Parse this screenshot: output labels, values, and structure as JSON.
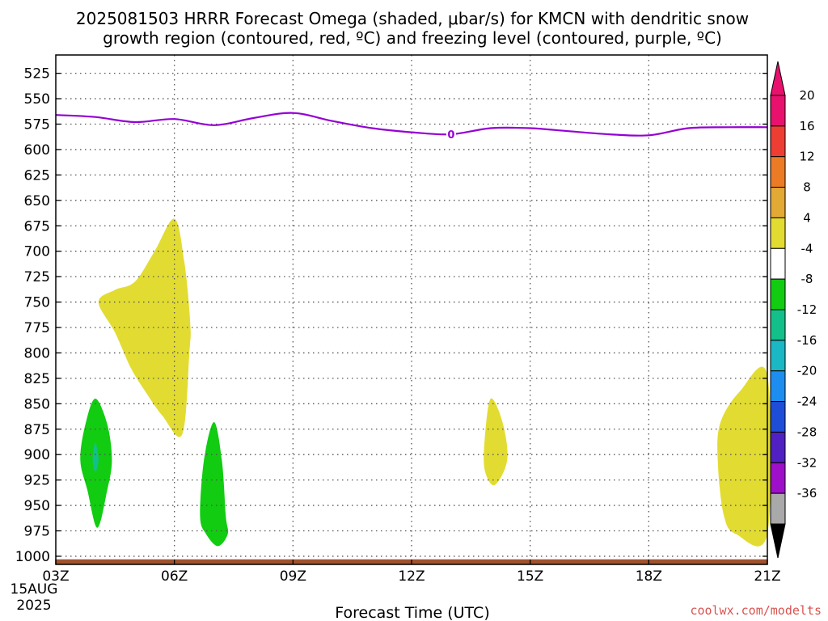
{
  "chart_data": {
    "type": "contour-cross-section",
    "title_line1": "2025081503 HRRR Forecast Omega (shaded, μbar/s) for KMCN with dendritic snow",
    "title_line2": "growth region (contoured, red, ºC) and freezing level (contoured, purple, ºC)",
    "xlabel": "Forecast Time (UTC)",
    "x_ticks": [
      {
        "hour": 3,
        "label": "03Z"
      },
      {
        "hour": 6,
        "label": "06Z"
      },
      {
        "hour": 9,
        "label": "09Z"
      },
      {
        "hour": 12,
        "label": "12Z"
      },
      {
        "hour": 15,
        "label": "15Z"
      },
      {
        "hour": 18,
        "label": "18Z"
      },
      {
        "hour": 21,
        "label": "21Z"
      }
    ],
    "x_date_line1": "15AUG",
    "x_date_line2": "2025",
    "xlim": [
      3,
      21
    ],
    "ylabel": "",
    "ylim": [
      1008,
      507
    ],
    "y_ticks": [
      525,
      550,
      575,
      600,
      625,
      650,
      675,
      700,
      725,
      750,
      775,
      800,
      825,
      850,
      875,
      900,
      925,
      950,
      975,
      1000
    ],
    "grid": true,
    "colorbar": {
      "labels": [
        "20",
        "16",
        "12",
        "8",
        "4",
        "-4",
        "-8",
        "-12",
        "-16",
        "-20",
        "-24",
        "-28",
        "-32",
        "-36"
      ],
      "bands": [
        {
          "from": 20,
          "to": 24,
          "color": "#e8116d"
        },
        {
          "from": 16,
          "to": 20,
          "color": "#ee3d33"
        },
        {
          "from": 12,
          "to": 16,
          "color": "#ec7b26"
        },
        {
          "from": 8,
          "to": 12,
          "color": "#e3a935"
        },
        {
          "from": 4,
          "to": 8,
          "color": "#e2dc32"
        },
        {
          "from": -4,
          "to": 4,
          "color": "#ffffff"
        },
        {
          "from": -8,
          "to": -4,
          "color": "#11cc11"
        },
        {
          "from": -12,
          "to": -8,
          "color": "#13c08a"
        },
        {
          "from": -16,
          "to": -12,
          "color": "#1ab8c4"
        },
        {
          "from": -20,
          "to": -16,
          "color": "#1d8ef0"
        },
        {
          "from": -24,
          "to": -20,
          "color": "#1e4ed8"
        },
        {
          "from": -28,
          "to": -24,
          "color": "#5120c2"
        },
        {
          "from": -32,
          "to": -28,
          "color": "#9d0fc8"
        },
        {
          "from": -36,
          "to": -32,
          "color": "#a9a9a9"
        }
      ],
      "upper_triangle_color": "#e8116d",
      "lower_triangle_color": "#000000"
    },
    "freezing_level": {
      "label": "0",
      "label_hour": 13,
      "color": "#9400d3",
      "points": [
        [
          3,
          566
        ],
        [
          4,
          568
        ],
        [
          5,
          573
        ],
        [
          6,
          570
        ],
        [
          7,
          576
        ],
        [
          8,
          569
        ],
        [
          9,
          564
        ],
        [
          10,
          572
        ],
        [
          11,
          579
        ],
        [
          12,
          583
        ],
        [
          13,
          585
        ],
        [
          14,
          579
        ],
        [
          15,
          579
        ],
        [
          16,
          582
        ],
        [
          17,
          585
        ],
        [
          18,
          586
        ],
        [
          19,
          579
        ],
        [
          20,
          578
        ],
        [
          21,
          578
        ]
      ]
    },
    "regions": [
      {
        "name": "upward-motion-a",
        "value": "4 to 8",
        "color": "#e2dc32",
        "points": [
          [
            4.08,
            750
          ],
          [
            4.5,
            738
          ],
          [
            5.0,
            730
          ],
          [
            5.5,
            700
          ],
          [
            6.0,
            668
          ],
          [
            6.25,
            710
          ],
          [
            6.4,
            770
          ],
          [
            6.38,
            800
          ],
          [
            6.2,
            880
          ],
          [
            5.7,
            862
          ],
          [
            5.3,
            840
          ],
          [
            4.9,
            815
          ],
          [
            4.5,
            780
          ]
        ]
      },
      {
        "name": "upward-motion-b",
        "value": "4 to 8",
        "color": "#e2dc32",
        "points": [
          [
            14.0,
            845
          ],
          [
            14.3,
            868
          ],
          [
            14.42,
            905
          ],
          [
            14.1,
            930
          ],
          [
            13.85,
            915
          ],
          [
            13.85,
            885
          ]
        ]
      },
      {
        "name": "upward-motion-c",
        "value": "4 to 8",
        "color": "#e2dc32",
        "points": [
          [
            21,
            822
          ],
          [
            20.3,
            838
          ],
          [
            19.8,
            870
          ],
          [
            19.75,
            910
          ],
          [
            19.9,
            960
          ],
          [
            20.2,
            978
          ],
          [
            21,
            978
          ]
        ]
      },
      {
        "name": "downward-motion-a",
        "value": "-8 to -4",
        "color": "#11cc11",
        "points": [
          [
            4.0,
            845
          ],
          [
            4.3,
            870
          ],
          [
            4.42,
            905
          ],
          [
            4.3,
            935
          ],
          [
            4.05,
            972
          ],
          [
            3.8,
            935
          ],
          [
            3.62,
            905
          ],
          [
            3.75,
            870
          ]
        ]
      },
      {
        "name": "downward-motion-a-core",
        "value": "-12 to -8",
        "color": "#13c08a",
        "points": [
          [
            4.0,
            888
          ],
          [
            4.08,
            905
          ],
          [
            4.0,
            917
          ],
          [
            3.93,
            905
          ]
        ]
      },
      {
        "name": "downward-motion-b",
        "value": "-8 to -4",
        "color": "#11cc11",
        "points": [
          [
            7.0,
            868
          ],
          [
            7.2,
            905
          ],
          [
            7.3,
            960
          ],
          [
            7.35,
            978
          ],
          [
            7.1,
            990
          ],
          [
            6.8,
            978
          ],
          [
            6.65,
            960
          ],
          [
            6.75,
            905
          ]
        ]
      }
    ],
    "terrain": {
      "color": "#a0522d",
      "top_pressure": 1003
    }
  },
  "watermark": "coolwx.com/modelts"
}
